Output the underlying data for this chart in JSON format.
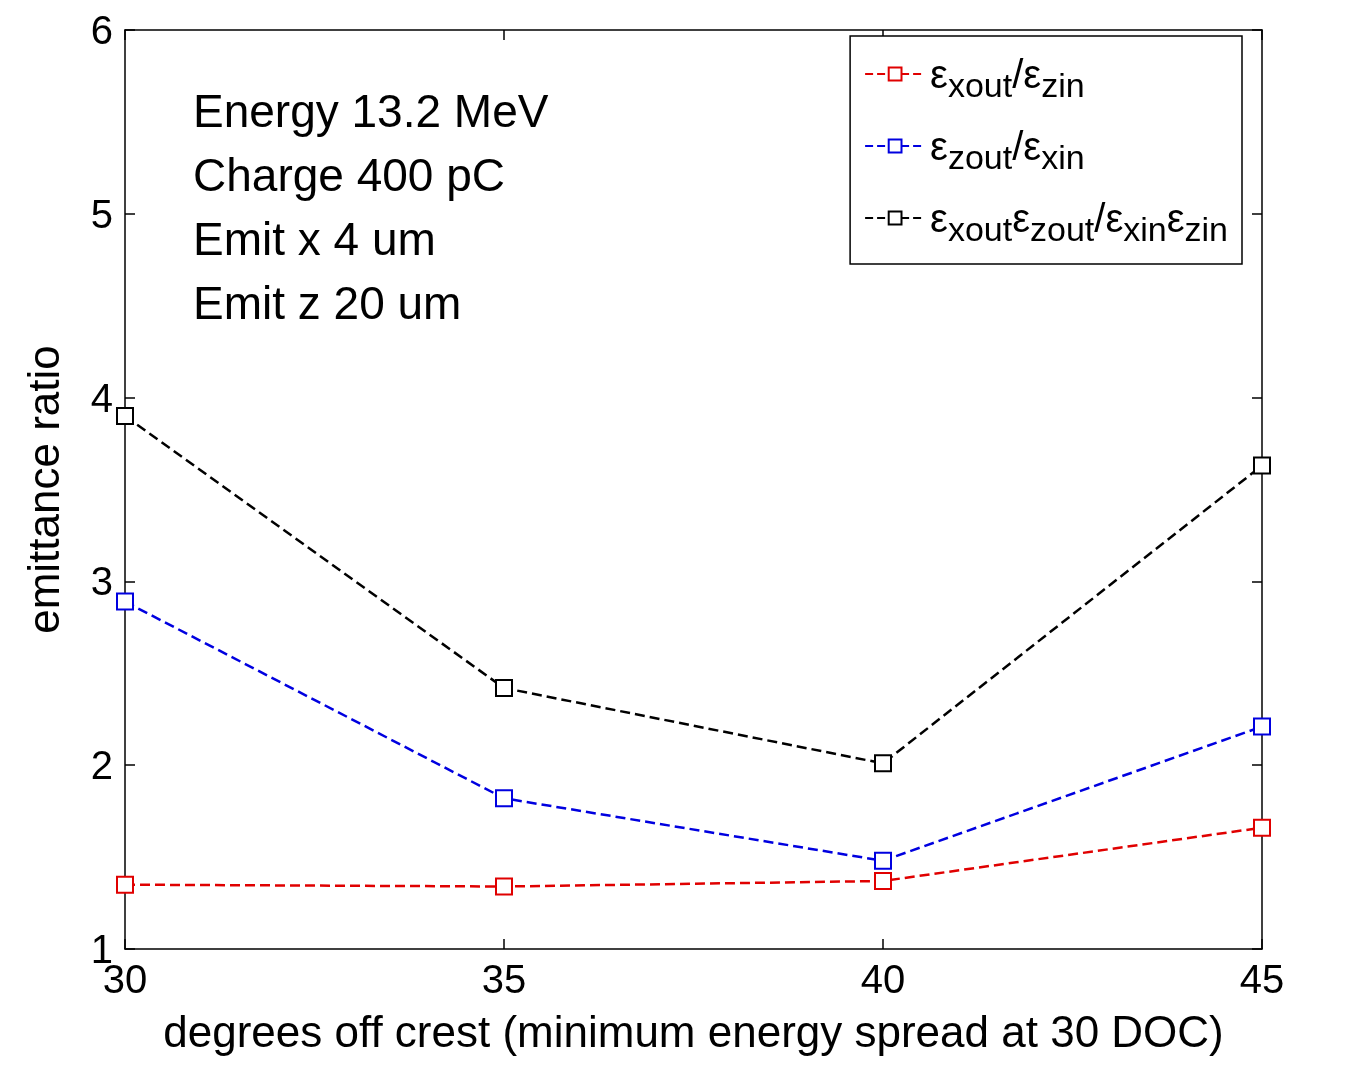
{
  "chart_data": {
    "type": "line",
    "xlabel": "degrees off crest (minimum energy spread at 30 DOC)",
    "ylabel": "emittance ratio",
    "x": [
      30,
      35,
      40,
      45
    ],
    "series": [
      {
        "name": "ε$_{xout}$/ε$_{zin}$",
        "color": "#e00000",
        "values": [
          1.35,
          1.34,
          1.37,
          1.66
        ]
      },
      {
        "name": "ε$_{zout}$/ε$_{xin}$",
        "color": "#0000e0",
        "values": [
          2.89,
          1.82,
          1.48,
          2.21
        ]
      },
      {
        "name": "ε$_{xout}$ε$_{zout}$/ε$_{xin}$ε$_{zin}$",
        "color": "#000000",
        "values": [
          3.9,
          2.42,
          2.01,
          3.63
        ]
      }
    ],
    "annotations": [
      "Energy 13.2 MeV",
      "Charge 400 pC",
      "Emit x 4 um",
      "Emit z 20 um"
    ],
    "xlim": [
      30,
      45
    ],
    "xticks": [
      30,
      35,
      40,
      45
    ],
    "ylim": [
      1,
      6
    ],
    "yticks": [
      1,
      2,
      3,
      4,
      5,
      6
    ],
    "grid": false,
    "legend": "top right",
    "marker": "square",
    "line_style": "dashed"
  }
}
